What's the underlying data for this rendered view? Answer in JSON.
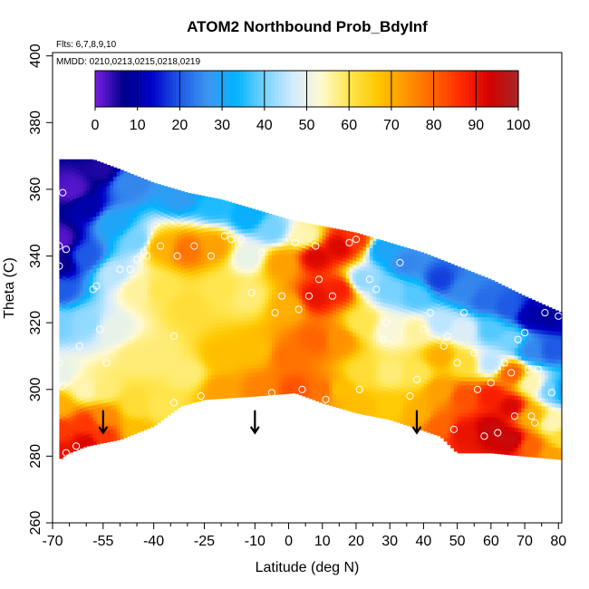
{
  "chart_data": {
    "type": "heatmap",
    "title": "ATOM2 Northbound Prob_BdyInf",
    "flights_note": "Flts: 6,7,8,9,10",
    "dates_note": "MMDD: 0210,0213,0215,0218,0219",
    "xlabel": "Latitude (deg N)",
    "ylabel": "Theta (C)",
    "xlim": [
      -70,
      81
    ],
    "ylim": [
      260,
      401
    ],
    "x_ticks": [
      -70,
      -55,
      -40,
      -25,
      -10,
      0,
      10,
      20,
      30,
      40,
      50,
      60,
      70,
      80
    ],
    "x_tick_labels": [
      "-70",
      "-55",
      "-40",
      "-25",
      "-10",
      "0",
      "10",
      "20",
      "30",
      "40",
      "50",
      "60",
      "70",
      "80"
    ],
    "x_minor_ticks": [
      -65,
      -60,
      -50,
      -45,
      -35,
      -30,
      -20,
      -15,
      -5,
      5,
      15,
      25,
      35,
      45,
      55,
      65,
      75
    ],
    "y_ticks": [
      260,
      280,
      300,
      320,
      340,
      360,
      380,
      400
    ],
    "y_tick_labels": [
      "260",
      "280",
      "300",
      "320",
      "340",
      "360",
      "380",
      "400"
    ],
    "colorbar": {
      "range": [
        0,
        100
      ],
      "ticks": [
        0,
        10,
        20,
        30,
        40,
        50,
        60,
        70,
        80,
        90,
        100
      ],
      "tick_labels": [
        "0",
        "10",
        "20",
        "30",
        "40",
        "50",
        "60",
        "70",
        "80",
        "90",
        "100"
      ],
      "colors": [
        "#7a1ee6",
        "#00008c",
        "#0000c8",
        "#1e5ae6",
        "#3c96f0",
        "#00b4ff",
        "#78d2ff",
        "#d2ebff",
        "#fffad2",
        "#ffe650",
        "#ffc800",
        "#ff9600",
        "#ff6400",
        "#ff2800",
        "#d20000",
        "#a52828"
      ]
    },
    "boundary": {
      "top": [
        [
          -68,
          369
        ],
        [
          -58,
          369
        ],
        [
          -50,
          366
        ],
        [
          -40,
          362
        ],
        [
          -30,
          359
        ],
        [
          -20,
          357
        ],
        [
          -10,
          354
        ],
        [
          0,
          351
        ],
        [
          10,
          349
        ],
        [
          20,
          347
        ],
        [
          30,
          344
        ],
        [
          40,
          341
        ],
        [
          50,
          337
        ],
        [
          60,
          333
        ],
        [
          70,
          328
        ],
        [
          81,
          323
        ]
      ],
      "bottom": [
        [
          81,
          279
        ],
        [
          70,
          280
        ],
        [
          60,
          281
        ],
        [
          50,
          281
        ],
        [
          45,
          286
        ],
        [
          30,
          291
        ],
        [
          20,
          293
        ],
        [
          10,
          296
        ],
        [
          2,
          299
        ],
        [
          -10,
          298
        ],
        [
          -25,
          297
        ],
        [
          -32,
          295
        ],
        [
          -40,
          289
        ],
        [
          -50,
          285
        ],
        [
          -60,
          283
        ],
        [
          -65,
          281
        ],
        [
          -68,
          279
        ]
      ]
    },
    "field_nodes": [
      [
        -68,
        345,
        2
      ],
      [
        -68,
        338,
        6
      ],
      [
        -68,
        330,
        20
      ],
      [
        -68,
        320,
        40
      ],
      [
        -68,
        305,
        50
      ],
      [
        -68,
        295,
        70
      ],
      [
        -68,
        288,
        85
      ],
      [
        -68,
        281,
        90
      ],
      [
        -64,
        360,
        2
      ],
      [
        -60,
        355,
        10
      ],
      [
        -60,
        340,
        20
      ],
      [
        -60,
        320,
        42
      ],
      [
        -60,
        300,
        55
      ],
      [
        -60,
        290,
        85
      ],
      [
        -60,
        284,
        92
      ],
      [
        -55,
        366,
        5
      ],
      [
        -52,
        350,
        30
      ],
      [
        -52,
        335,
        45
      ],
      [
        -52,
        318,
        50
      ],
      [
        -55,
        300,
        58
      ],
      [
        -55,
        292,
        75
      ],
      [
        -55,
        286,
        85
      ],
      [
        -48,
        362,
        25
      ],
      [
        -45,
        345,
        40
      ],
      [
        -45,
        330,
        56
      ],
      [
        -45,
        310,
        58
      ],
      [
        -45,
        295,
        62
      ],
      [
        -45,
        288,
        68
      ],
      [
        -38,
        343,
        70
      ],
      [
        -38,
        330,
        60
      ],
      [
        -38,
        310,
        58
      ],
      [
        -38,
        295,
        60
      ],
      [
        -32,
        358,
        28
      ],
      [
        -30,
        342,
        78
      ],
      [
        -30,
        325,
        62
      ],
      [
        -30,
        305,
        58
      ],
      [
        -22,
        355,
        35
      ],
      [
        -22,
        343,
        72
      ],
      [
        -20,
        330,
        60
      ],
      [
        -20,
        310,
        68
      ],
      [
        -20,
        300,
        72
      ],
      [
        -12,
        352,
        32
      ],
      [
        -12,
        340,
        50
      ],
      [
        -12,
        328,
        58
      ],
      [
        -10,
        312,
        68
      ],
      [
        -8,
        300,
        76
      ],
      [
        -5,
        348,
        40
      ],
      [
        -2,
        338,
        72
      ],
      [
        0,
        325,
        70
      ],
      [
        0,
        310,
        78
      ],
      [
        2,
        300,
        82
      ],
      [
        5,
        346,
        55
      ],
      [
        8,
        340,
        92
      ],
      [
        8,
        328,
        90
      ],
      [
        8,
        315,
        80
      ],
      [
        10,
        300,
        78
      ],
      [
        15,
        343,
        92
      ],
      [
        15,
        330,
        88
      ],
      [
        15,
        315,
        74
      ],
      [
        15,
        300,
        68
      ],
      [
        20,
        345,
        85
      ],
      [
        22,
        333,
        42
      ],
      [
        22,
        320,
        60
      ],
      [
        22,
        305,
        62
      ],
      [
        22,
        295,
        68
      ],
      [
        28,
        342,
        30
      ],
      [
        30,
        330,
        40
      ],
      [
        30,
        318,
        52
      ],
      [
        30,
        305,
        58
      ],
      [
        30,
        295,
        66
      ],
      [
        35,
        338,
        25
      ],
      [
        38,
        328,
        38
      ],
      [
        38,
        318,
        56
      ],
      [
        38,
        305,
        60
      ],
      [
        38,
        293,
        70
      ],
      [
        45,
        333,
        18
      ],
      [
        45,
        320,
        45
      ],
      [
        45,
        310,
        70
      ],
      [
        45,
        300,
        72
      ],
      [
        45,
        289,
        80
      ],
      [
        52,
        330,
        25
      ],
      [
        52,
        318,
        48
      ],
      [
        52,
        308,
        62
      ],
      [
        52,
        298,
        82
      ],
      [
        52,
        287,
        90
      ],
      [
        58,
        327,
        22
      ],
      [
        60,
        318,
        38
      ],
      [
        60,
        308,
        45
      ],
      [
        60,
        298,
        88
      ],
      [
        60,
        288,
        95
      ],
      [
        65,
        325,
        20
      ],
      [
        66,
        315,
        40
      ],
      [
        66,
        305,
        80
      ],
      [
        66,
        295,
        92
      ],
      [
        66,
        285,
        95
      ],
      [
        72,
        322,
        10
      ],
      [
        72,
        312,
        25
      ],
      [
        72,
        302,
        55
      ],
      [
        72,
        292,
        70
      ],
      [
        72,
        283,
        80
      ],
      [
        78,
        322,
        8
      ],
      [
        78,
        312,
        20
      ],
      [
        78,
        300,
        40
      ],
      [
        78,
        290,
        55
      ],
      [
        78,
        281,
        72
      ],
      [
        81,
        322,
        12
      ],
      [
        81,
        300,
        30
      ],
      [
        81,
        285,
        62
      ]
    ],
    "observations": [
      [
        -68,
        343
      ],
      [
        -68,
        337
      ],
      [
        -67,
        359
      ],
      [
        -66,
        342
      ],
      [
        -68,
        308
      ],
      [
        -67,
        301
      ],
      [
        -68,
        278
      ],
      [
        -66,
        281
      ],
      [
        -63,
        283
      ],
      [
        -62,
        313
      ],
      [
        -58,
        330
      ],
      [
        -57,
        331
      ],
      [
        -56,
        318
      ],
      [
        -54,
        308
      ],
      [
        -50,
        336
      ],
      [
        -47,
        336
      ],
      [
        -45,
        339
      ],
      [
        -43,
        341
      ],
      [
        -42,
        340
      ],
      [
        -38,
        343
      ],
      [
        -33,
        340
      ],
      [
        -34,
        316
      ],
      [
        -34,
        296
      ],
      [
        -28,
        343
      ],
      [
        -26,
        298
      ],
      [
        -23,
        340
      ],
      [
        -19,
        346
      ],
      [
        -17,
        345
      ],
      [
        -14,
        345
      ],
      [
        -11,
        329
      ],
      [
        -8,
        341
      ],
      [
        -5,
        299
      ],
      [
        -4,
        323
      ],
      [
        -2,
        328
      ],
      [
        2,
        344
      ],
      [
        3,
        324
      ],
      [
        4,
        300
      ],
      [
        6,
        328
      ],
      [
        8,
        343
      ],
      [
        9,
        333
      ],
      [
        11,
        297
      ],
      [
        13,
        328
      ],
      [
        18,
        344
      ],
      [
        20,
        345
      ],
      [
        21,
        300
      ],
      [
        24,
        333
      ],
      [
        26,
        330
      ],
      [
        28,
        315
      ],
      [
        29,
        320
      ],
      [
        33,
        338
      ],
      [
        35,
        344
      ],
      [
        36,
        298
      ],
      [
        38,
        303
      ],
      [
        40,
        318
      ],
      [
        42,
        323
      ],
      [
        46,
        313
      ],
      [
        47,
        316
      ],
      [
        49,
        288
      ],
      [
        50,
        308
      ],
      [
        52,
        323
      ],
      [
        55,
        311
      ],
      [
        56,
        300
      ],
      [
        58,
        286
      ],
      [
        60,
        302
      ],
      [
        62,
        287
      ],
      [
        63,
        279
      ],
      [
        64,
        308
      ],
      [
        66,
        305
      ],
      [
        67,
        292
      ],
      [
        68,
        315
      ],
      [
        70,
        317
      ],
      [
        71,
        306
      ],
      [
        72,
        292
      ],
      [
        73,
        290
      ],
      [
        74,
        306
      ],
      [
        76,
        323
      ],
      [
        78,
        299
      ],
      [
        80,
        322
      ]
    ],
    "arrows_x": [
      -55,
      -10,
      38
    ],
    "arrow_tip_y": 287
  }
}
